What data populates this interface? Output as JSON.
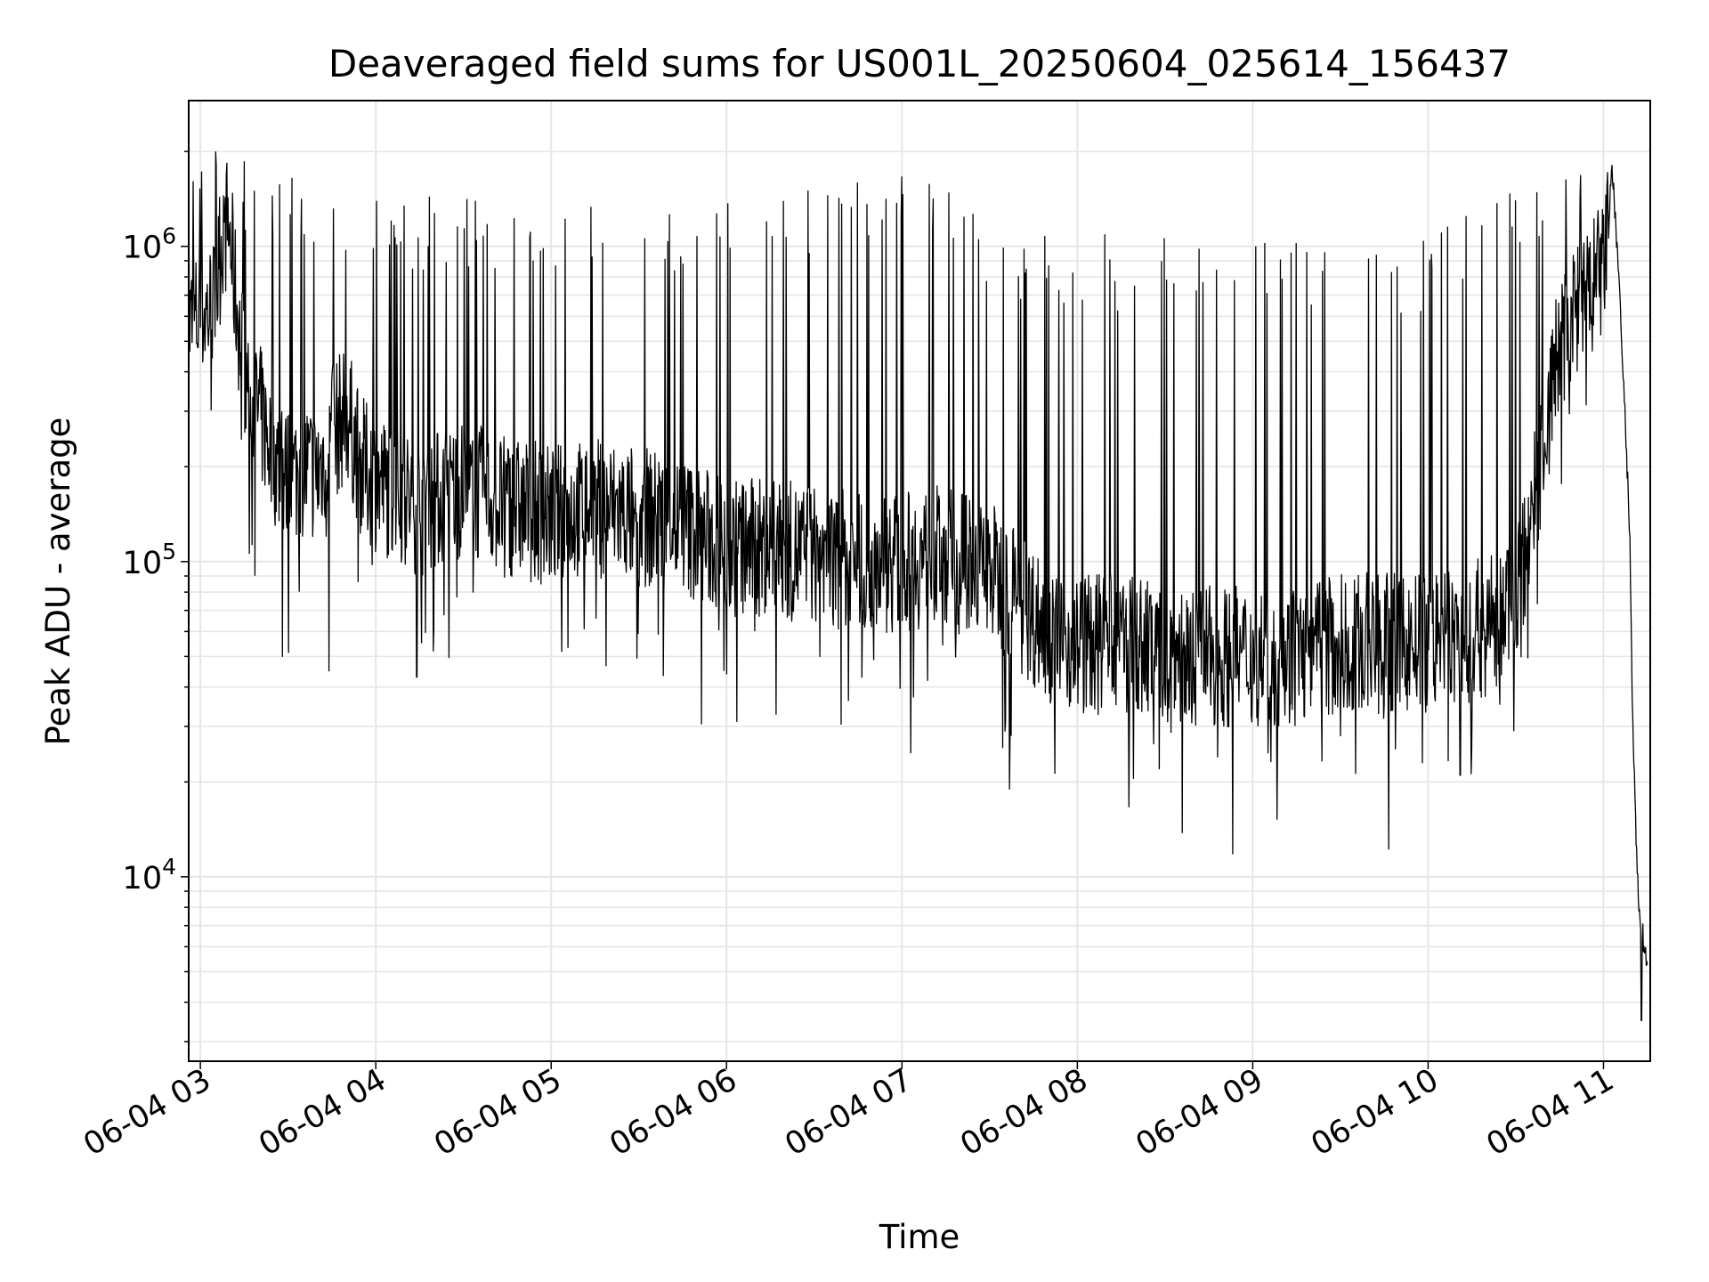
{
  "chart_data": {
    "type": "line",
    "title": "Deaveraged field sums for US001L_20250604_025614_156437",
    "xlabel": "Time",
    "ylabel": "Peak ADU - average",
    "y_scale": "log",
    "ylim": [
      2600,
      2900000
    ],
    "xlim": [
      "2025-06-04 02:56:00",
      "2025-06-04 11:16:00"
    ],
    "grid": true,
    "colors": {
      "line": "#000000",
      "grid": "#e6e6e6",
      "axes": "#000000"
    },
    "x_ticks": [
      {
        "t": "2025-06-04 03:00",
        "label": "06-04 03"
      },
      {
        "t": "2025-06-04 04:00",
        "label": "06-04 04"
      },
      {
        "t": "2025-06-04 05:00",
        "label": "06-04 05"
      },
      {
        "t": "2025-06-04 06:00",
        "label": "06-04 06"
      },
      {
        "t": "2025-06-04 07:00",
        "label": "06-04 07"
      },
      {
        "t": "2025-06-04 08:00",
        "label": "06-04 08"
      },
      {
        "t": "2025-06-04 09:00",
        "label": "06-04 09"
      },
      {
        "t": "2025-06-04 10:00",
        "label": "06-04 10"
      },
      {
        "t": "2025-06-04 11:00",
        "label": "06-04 11"
      }
    ],
    "y_ticks": [
      {
        "value": 10000,
        "base": "10",
        "exp": "4"
      },
      {
        "value": 100000,
        "base": "10",
        "exp": "5"
      },
      {
        "value": 1000000,
        "base": "10",
        "exp": "6"
      }
    ],
    "series": [
      {
        "x": [
          "2025-06-04 02:56",
          "2025-06-04 03:00",
          "2025-06-04 03:05",
          "2025-06-04 03:08",
          "2025-06-04 03:10",
          "2025-06-04 03:12",
          "2025-06-04 03:15",
          "2025-06-04 03:20",
          "2025-06-04 03:25",
          "2025-06-04 03:30",
          "2025-06-04 03:35",
          "2025-06-04 03:40",
          "2025-06-04 03:45",
          "2025-06-04 03:50",
          "2025-06-04 03:55",
          "2025-06-04 04:00",
          "2025-06-04 04:15",
          "2025-06-04 04:30",
          "2025-06-04 04:45",
          "2025-06-04 05:00",
          "2025-06-04 05:15",
          "2025-06-04 05:30",
          "2025-06-04 05:45",
          "2025-06-04 06:00",
          "2025-06-04 06:15",
          "2025-06-04 06:30",
          "2025-06-04 06:45",
          "2025-06-04 07:00",
          "2025-06-04 07:15",
          "2025-06-04 07:30",
          "2025-06-04 07:40",
          "2025-06-04 07:50",
          "2025-06-04 08:00",
          "2025-06-04 08:15",
          "2025-06-04 08:30",
          "2025-06-04 08:45",
          "2025-06-04 09:00",
          "2025-06-04 09:15",
          "2025-06-04 09:30",
          "2025-06-04 09:45",
          "2025-06-04 10:00",
          "2025-06-04 10:15",
          "2025-06-04 10:25",
          "2025-06-04 10:30",
          "2025-06-04 10:35",
          "2025-06-04 10:40",
          "2025-06-04 10:45",
          "2025-06-04 10:50",
          "2025-06-04 10:55",
          "2025-06-04 11:00",
          "2025-06-04 11:03",
          "2025-06-04 11:05",
          "2025-06-04 11:07",
          "2025-06-04 11:09",
          "2025-06-04 11:10",
          "2025-06-04 11:11",
          "2025-06-04 11:12",
          "2025-06-04 11:13",
          "2025-06-04 11:14",
          "2025-06-04 11:15"
        ],
        "y": [
          550000,
          600000,
          650000,
          1200000,
          1100000,
          700000,
          400000,
          300000,
          220000,
          180000,
          200000,
          190000,
          250000,
          300000,
          200000,
          180000,
          150000,
          170000,
          150000,
          140000,
          150000,
          140000,
          130000,
          110000,
          110000,
          105000,
          100000,
          100000,
          105000,
          95000,
          75000,
          60000,
          55000,
          55000,
          52000,
          50000,
          50000,
          50000,
          55000,
          55000,
          55000,
          60000,
          65000,
          80000,
          130000,
          250000,
          500000,
          600000,
          700000,
          850000,
          1700000,
          900000,
          350000,
          120000,
          30000,
          15000,
          8000,
          7000,
          6000,
          5500
        ],
        "spike_highs": [
          {
            "t": "2025-06-04 03:04",
            "y": 2100000
          },
          {
            "t": "2025-06-04 03:52",
            "y": 1500000
          },
          {
            "t": "2025-06-04 05:10",
            "y": 1400000
          },
          {
            "t": "2025-06-04 05:45",
            "y": 1300000
          },
          {
            "t": "2025-06-04 05:54",
            "y": 1350000
          },
          {
            "t": "2025-06-04 06:10",
            "y": 1600000
          },
          {
            "t": "2025-06-04 06:30",
            "y": 1600000
          },
          {
            "t": "2025-06-04 06:50",
            "y": 1950000
          },
          {
            "t": "2025-06-04 07:06",
            "y": 1700000
          },
          {
            "t": "2025-06-04 07:22",
            "y": 1400000
          },
          {
            "t": "2025-06-04 07:35",
            "y": 1150000
          },
          {
            "t": "2025-06-04 08:00",
            "y": 1100000
          },
          {
            "t": "2025-06-04 08:30",
            "y": 1100000
          },
          {
            "t": "2025-06-04 09:00",
            "y": 1050000
          },
          {
            "t": "2025-06-04 09:30",
            "y": 1050000
          },
          {
            "t": "2025-06-04 10:00",
            "y": 1100000
          },
          {
            "t": "2025-06-04 10:40",
            "y": 1800000
          }
        ],
        "spike_lows": [
          {
            "t": "2025-06-04 03:28",
            "y": 50000
          },
          {
            "t": "2025-06-04 03:44",
            "y": 45000
          },
          {
            "t": "2025-06-04 04:14",
            "y": 43000
          },
          {
            "t": "2025-06-04 06:00",
            "y": 44000
          },
          {
            "t": "2025-06-04 07:37",
            "y": 27000
          },
          {
            "t": "2025-06-04 08:28",
            "y": 22000
          },
          {
            "t": "2025-06-04 08:48",
            "y": 24000
          },
          {
            "t": "2025-06-04 09:30",
            "y": 28000
          },
          {
            "t": "2025-06-04 09:58",
            "y": 23000
          },
          {
            "t": "2025-06-04 10:11",
            "y": 21000
          },
          {
            "t": "2025-06-04 10:15",
            "y": 25000
          },
          {
            "t": "2025-06-04 11:13",
            "y": 3500
          }
        ]
      }
    ]
  }
}
